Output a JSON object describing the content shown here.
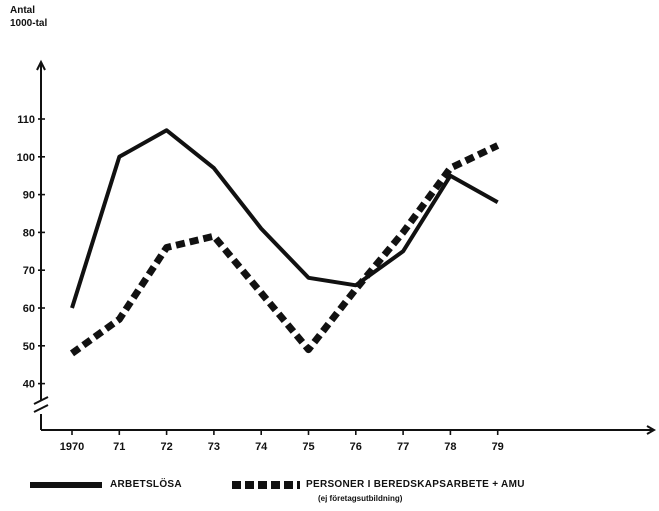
{
  "chart_data": {
    "type": "line",
    "ylabel_lines": [
      "Antal",
      "1000-tal"
    ],
    "categories": [
      "1970",
      "71",
      "72",
      "73",
      "74",
      "75",
      "76",
      "77",
      "78",
      "79"
    ],
    "ylim": [
      40,
      110
    ],
    "yticks": [
      40,
      50,
      60,
      70,
      80,
      90,
      100,
      110
    ],
    "grid": false,
    "legend_position": "bottom",
    "series": [
      {
        "name": "ARBETSLÖSA",
        "style": "solid",
        "color": "#111111",
        "values": [
          60,
          100,
          107,
          97,
          81,
          68,
          66,
          75,
          95,
          88
        ]
      },
      {
        "name": "PERSONER I BEREDSKAPSARBETE + AMU",
        "note": "(ej företagsutbildning)",
        "style": "dashed",
        "color": "#111111",
        "values": [
          48,
          57,
          76,
          79,
          64,
          49,
          65,
          80,
          97,
          103
        ]
      }
    ]
  }
}
